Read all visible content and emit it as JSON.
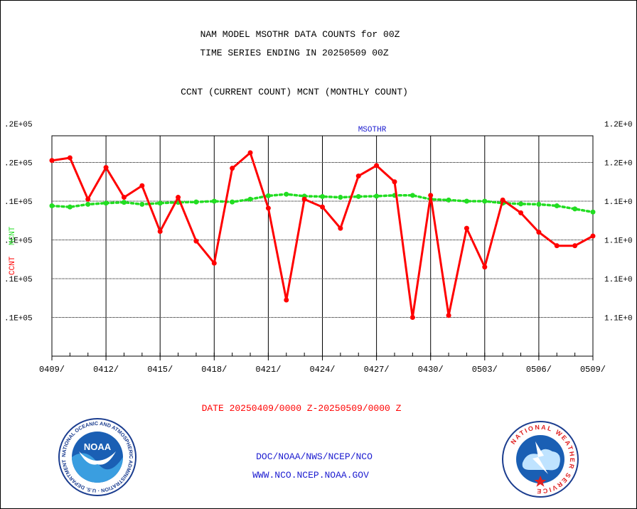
{
  "header": {
    "title_line1": "NAM MODEL MSOTHR DATA COUNTS for 00Z",
    "title_line2": "TIME SERIES ENDING IN 20250509 00Z",
    "subtitle": "CCNT (CURRENT COUNT) MCNT (MONTHLY COUNT)"
  },
  "footer": {
    "date_range": "DATE 20250409/0000 Z-20250509/0000 Z",
    "org_line": "DOC/NOAA/NWS/NCEP/NCO",
    "url_line": "WWW.NCO.NCEP.NOAA.GOV",
    "noaa_logo_text": "NOAA",
    "noaa_ring_text": "NATIONAL OCEANIC AND ATMOSPHERIC ADMINISTRATION · U.S. DEPARTMENT OF COMMERCE ·",
    "nws_ring_text": "NATIONAL WEATHER SERVICE"
  },
  "chart_data": {
    "type": "line",
    "title": "MSOTHR",
    "left_axis_label_ccnt": "CCNT",
    "left_axis_label_mcnt": "MCNT",
    "x_tick_labels": [
      "0409/",
      "0412/",
      "0415/",
      "0418/",
      "0421/",
      "0424/",
      "0427/",
      "0430/",
      "0503/",
      "0506/",
      "0509/"
    ],
    "left_tick_labels": [
      ".2E+05",
      ".2E+05",
      ".1E+05",
      ".1E+05",
      ".1E+05",
      ".1E+05"
    ],
    "right_tick_labels": [
      "1.2E+0",
      "1.2E+0",
      "1.1E+0",
      "1.1E+0",
      "1.1E+0",
      "1.1E+0"
    ],
    "ylim_level": [
      0,
      6
    ],
    "grid": true,
    "colors": {
      "ccnt": "#ff0000",
      "mcnt": "#22dd22",
      "grid": "#000000",
      "title": "#1c1cd0"
    },
    "series": [
      {
        "name": "CCNT",
        "values": [
          5.05,
          5.12,
          4.05,
          4.87,
          4.1,
          4.4,
          3.22,
          4.1,
          2.97,
          2.4,
          4.85,
          5.25,
          3.82,
          1.45,
          4.05,
          3.85,
          3.3,
          4.65,
          4.92,
          4.5,
          1.0,
          4.15,
          1.05,
          3.3,
          2.3,
          4.03,
          3.7,
          3.2,
          2.85,
          2.85,
          3.1
        ]
      },
      {
        "name": "MCNT",
        "values": [
          3.88,
          3.85,
          3.92,
          3.95,
          3.97,
          3.92,
          3.95,
          3.97,
          3.98,
          4.0,
          3.98,
          4.05,
          4.14,
          4.18,
          4.13,
          4.12,
          4.1,
          4.12,
          4.13,
          4.15,
          4.15,
          4.05,
          4.03,
          4.0,
          4.0,
          3.95,
          3.93,
          3.92,
          3.88,
          3.8,
          3.72
        ]
      }
    ]
  }
}
